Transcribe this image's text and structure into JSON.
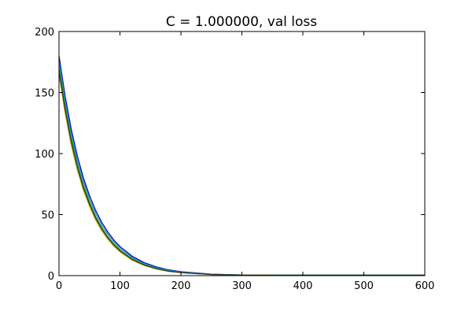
{
  "chart_data": {
    "type": "line",
    "title": "C = 1.000000, val loss",
    "xlabel": "",
    "ylabel": "",
    "xlim": [
      0,
      600
    ],
    "ylim": [
      0,
      200
    ],
    "xticks": [
      0,
      100,
      200,
      300,
      400,
      500,
      600
    ],
    "yticks": [
      0,
      50,
      100,
      150,
      200
    ],
    "xtick_labels": [
      "0",
      "100",
      "200",
      "300",
      "400",
      "500",
      "600"
    ],
    "ytick_labels": [
      "0",
      "50",
      "100",
      "150",
      "200"
    ],
    "grid": false,
    "legend": "none",
    "series": [
      {
        "color": "#0000cc",
        "x": [
          0,
          10,
          20,
          30,
          40,
          50,
          60,
          70,
          80,
          90,
          100,
          120,
          140,
          160,
          180,
          200,
          250,
          300,
          400,
          500,
          600
        ],
        "values": [
          180,
          147,
          120,
          98,
          80,
          65.5,
          53.5,
          43.7,
          35.7,
          29.1,
          23.8,
          15.9,
          10.6,
          7.1,
          4.7,
          3.2,
          1.2,
          0.6,
          0.5,
          0.5,
          0.5
        ]
      },
      {
        "color": "#2ca02c",
        "x": [
          0,
          10,
          20,
          30,
          40,
          50,
          60,
          70,
          80,
          90,
          100,
          120,
          140,
          160,
          180,
          200,
          250,
          300,
          400,
          500,
          600
        ],
        "values": [
          172,
          139,
          113,
          91,
          74,
          60,
          48.5,
          39.3,
          31.8,
          25.8,
          20.9,
          13.7,
          9.0,
          5.9,
          3.9,
          2.6,
          1.0,
          0.5,
          0.4,
          0.4,
          0.4
        ]
      },
      {
        "color": "#1b9e9e",
        "x": [
          0,
          10,
          20,
          30,
          40,
          50,
          60,
          70,
          80,
          90,
          100,
          120,
          140,
          160,
          180,
          200,
          250,
          300,
          400,
          500,
          600
        ],
        "values": [
          176,
          143,
          116,
          94,
          77,
          62.5,
          51,
          41.4,
          33.7,
          27.4,
          22.3,
          14.8,
          9.8,
          6.5,
          4.3,
          2.9,
          1.1,
          0.5,
          0.4,
          0.4,
          0.4
        ]
      },
      {
        "color": "#c8b400",
        "x": [
          0,
          10,
          20,
          30,
          40,
          50,
          60,
          70,
          80,
          90,
          100,
          120,
          140,
          160,
          180,
          200,
          250,
          300,
          400,
          500,
          600
        ],
        "values": [
          165,
          133,
          107,
          86.5,
          70,
          56.5,
          45.6,
          36.8,
          29.7,
          24.0,
          19.4,
          12.6,
          8.2,
          5.4,
          3.5,
          2.3,
          0.9,
          0.4,
          0.3,
          0.3,
          0.3
        ]
      },
      {
        "color": "#333333",
        "x": [
          0,
          10,
          20,
          30,
          40,
          50,
          60,
          70,
          80,
          90,
          100,
          120,
          140,
          160,
          180,
          200,
          250,
          300,
          400,
          500,
          600
        ],
        "values": [
          168,
          136,
          110,
          89,
          72,
          58.5,
          47.3,
          38.3,
          31.0,
          25.1,
          20.3,
          13.3,
          8.7,
          5.7,
          3.7,
          2.5,
          0.9,
          0.4,
          0.3,
          0.3,
          0.3
        ]
      }
    ]
  }
}
